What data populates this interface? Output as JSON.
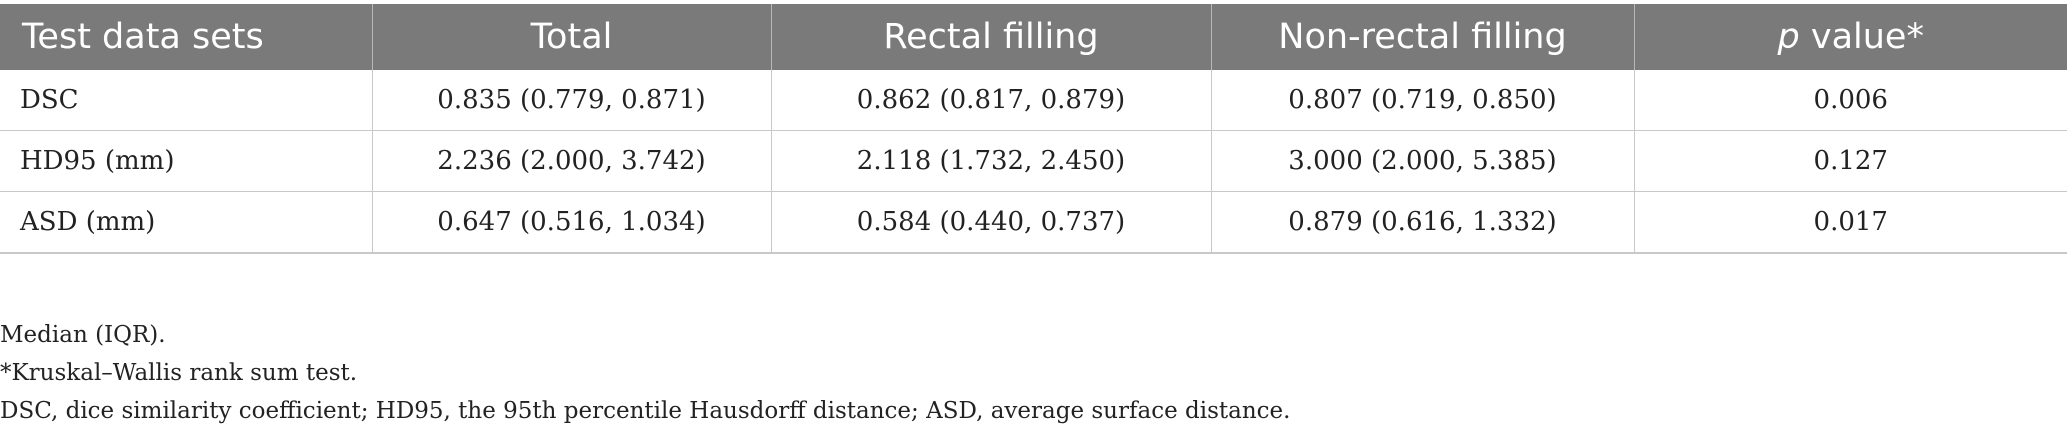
{
  "table": {
    "headers": {
      "col0": "Test data sets",
      "col1": "Total",
      "col2": "Rectal filling",
      "col3": "Non-rectal filling",
      "col4_italic": "p",
      "col4_rest": " value*"
    },
    "rows": [
      [
        "DSC",
        "0.835 (0.779, 0.871)",
        "0.862 (0.817, 0.879)",
        "0.807 (0.719, 0.850)",
        "0.006"
      ],
      [
        "HD95 (mm)",
        "2.236 (2.000, 3.742)",
        "2.118 (1.732, 2.450)",
        "3.000 (2.000, 5.385)",
        "0.127"
      ],
      [
        "ASD (mm)",
        "0.647 (0.516, 1.034)",
        "0.584 (0.440, 0.737)",
        "0.879 (0.616, 1.332)",
        "0.017"
      ]
    ]
  },
  "notes": [
    "Median (IQR).",
    "*Kruskal–Wallis rank sum test.",
    "DSC, dice similarity coefficient; HD95, the 95th percentile Hausdorff distance; ASD, average surface distance."
  ]
}
